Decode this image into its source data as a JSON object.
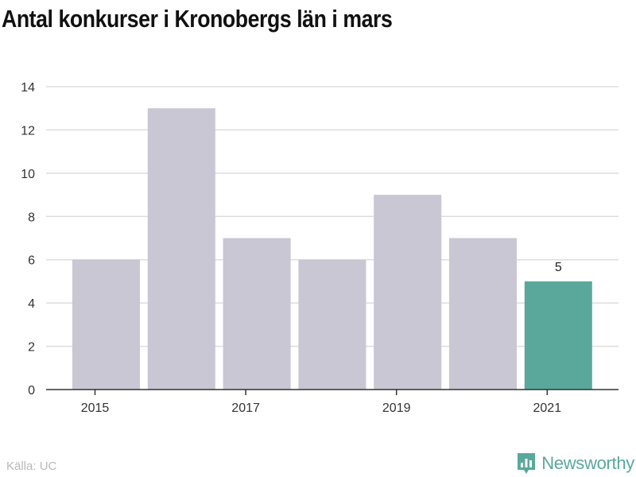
{
  "chart_data": {
    "type": "bar",
    "title": "Antal konkurser i Kronobergs län i mars",
    "categories": [
      "2015",
      "2016",
      "2017",
      "2018",
      "2019",
      "2020",
      "2021"
    ],
    "values": [
      6,
      13,
      7,
      6,
      9,
      7,
      5
    ],
    "x_tick_labels": [
      "2015",
      "2017",
      "2019",
      "2021"
    ],
    "y_ticks": [
      0,
      2,
      4,
      6,
      8,
      10,
      12,
      14
    ],
    "ylim": [
      0,
      14
    ],
    "xlabel": "",
    "ylabel": "",
    "grid": true,
    "highlight": {
      "category": "2021",
      "label": "5"
    },
    "colors": {
      "bar": "#c8c7d3",
      "highlight": "#5aa89c",
      "grid": "#dddddd",
      "axis": "#333333"
    }
  },
  "source": "Källa: UC",
  "brand": {
    "name": "Newsworthy",
    "icon": "bar-chart-badge-icon",
    "color": "#5aa89c"
  }
}
